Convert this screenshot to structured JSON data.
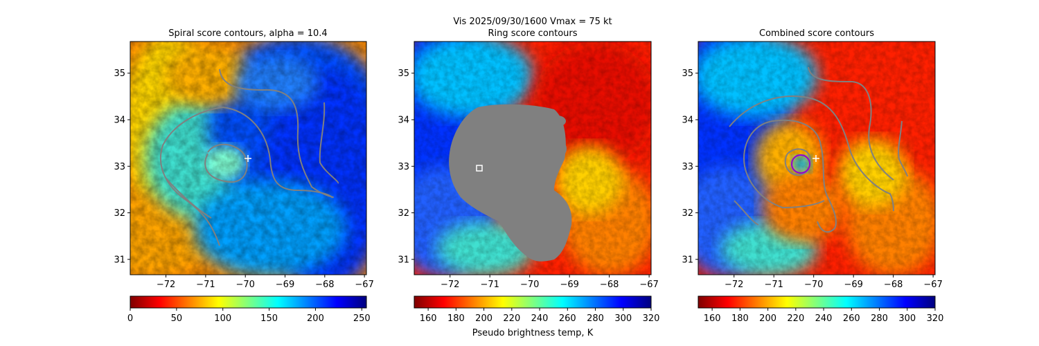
{
  "figure": {
    "suptitle_line1": "Vis  2025/09/30/1600    Vmax = 75 kt"
  },
  "colormap": {
    "name": "jet",
    "stops": [
      "#00007f",
      "#0000ff",
      "#007fff",
      "#00ffff",
      "#7fff7f",
      "#ffff00",
      "#ff7f00",
      "#ff0000",
      "#7f0000"
    ]
  },
  "contour_color": "#808080",
  "mask_color": "#808080",
  "chart_data": [
    {
      "type": "heatmap",
      "title": "Spiral score contours, alpha = 10.4",
      "xlabel": "",
      "ylabel": "",
      "xlim": [
        -72.9,
        -66.95
      ],
      "ylim": [
        30.67,
        35.68
      ],
      "xticks": [
        -72,
        -71,
        -70,
        -69,
        -68,
        -67
      ],
      "xtick_labels": [
        "−72",
        "−71",
        "−70",
        "−69",
        "−68",
        "−67"
      ],
      "yticks": [
        31,
        32,
        33,
        34,
        35
      ],
      "ytick_labels": [
        "31",
        "32",
        "33",
        "34",
        "35"
      ],
      "colormap_reversed": true,
      "colorbar": {
        "range": [
          0,
          255
        ],
        "ticks": [
          0,
          50,
          100,
          150,
          200,
          250
        ],
        "tick_labels": [
          "0",
          "50",
          "100",
          "150",
          "200",
          "250"
        ],
        "label": ""
      },
      "markers": [
        {
          "shape": "plus",
          "x": -69.9,
          "y": 33.18,
          "color": "#ffffff"
        }
      ]
    },
    {
      "type": "heatmap",
      "title": "Ring score contours",
      "xlabel": "",
      "ylabel": "",
      "xlim": [
        -72.9,
        -66.95
      ],
      "ylim": [
        30.67,
        35.68
      ],
      "xticks": [
        -72,
        -71,
        -70,
        -69,
        -68,
        -67
      ],
      "xtick_labels": [
        "−72",
        "−71",
        "−70",
        "−69",
        "−68",
        "−67"
      ],
      "yticks": [
        31,
        32,
        33,
        34,
        35
      ],
      "ytick_labels": [
        "31",
        "32",
        "33",
        "34",
        "35"
      ],
      "colormap_reversed": true,
      "colorbar": {
        "range": [
          150,
          320
        ],
        "ticks": [
          160,
          180,
          200,
          220,
          240,
          260,
          280,
          300,
          320
        ],
        "tick_labels": [
          "160",
          "180",
          "200",
          "220",
          "240",
          "260",
          "280",
          "300",
          "320"
        ],
        "label": "Pseudo brightness temp, K"
      },
      "markers": [
        {
          "shape": "square",
          "x": -71.3,
          "y": 32.97,
          "color": "#ffffff"
        }
      ]
    },
    {
      "type": "heatmap",
      "title": "Combined score contours",
      "xlabel": "",
      "ylabel": "",
      "xlim": [
        -72.9,
        -66.95
      ],
      "ylim": [
        30.67,
        35.68
      ],
      "xticks": [
        -72,
        -71,
        -70,
        -69,
        -68,
        -67
      ],
      "xtick_labels": [
        "−72",
        "−71",
        "−70",
        "−69",
        "−68",
        "−67"
      ],
      "yticks": [
        31,
        32,
        33,
        34,
        35
      ],
      "ytick_labels": [
        "31",
        "32",
        "33",
        "34",
        "35"
      ],
      "colormap_reversed": true,
      "colorbar": {
        "range": [
          150,
          320
        ],
        "ticks": [
          160,
          180,
          200,
          220,
          240,
          260,
          280,
          300,
          320
        ],
        "tick_labels": [
          "160",
          "180",
          "200",
          "220",
          "240",
          "260",
          "280",
          "300",
          "320"
        ],
        "label": ""
      },
      "markers": [
        {
          "shape": "plus",
          "x": -69.9,
          "y": 33.18,
          "color": "#ffffff"
        },
        {
          "shape": "circle",
          "x": -70.25,
          "y": 33.05,
          "color": "#9400d3"
        }
      ]
    }
  ]
}
